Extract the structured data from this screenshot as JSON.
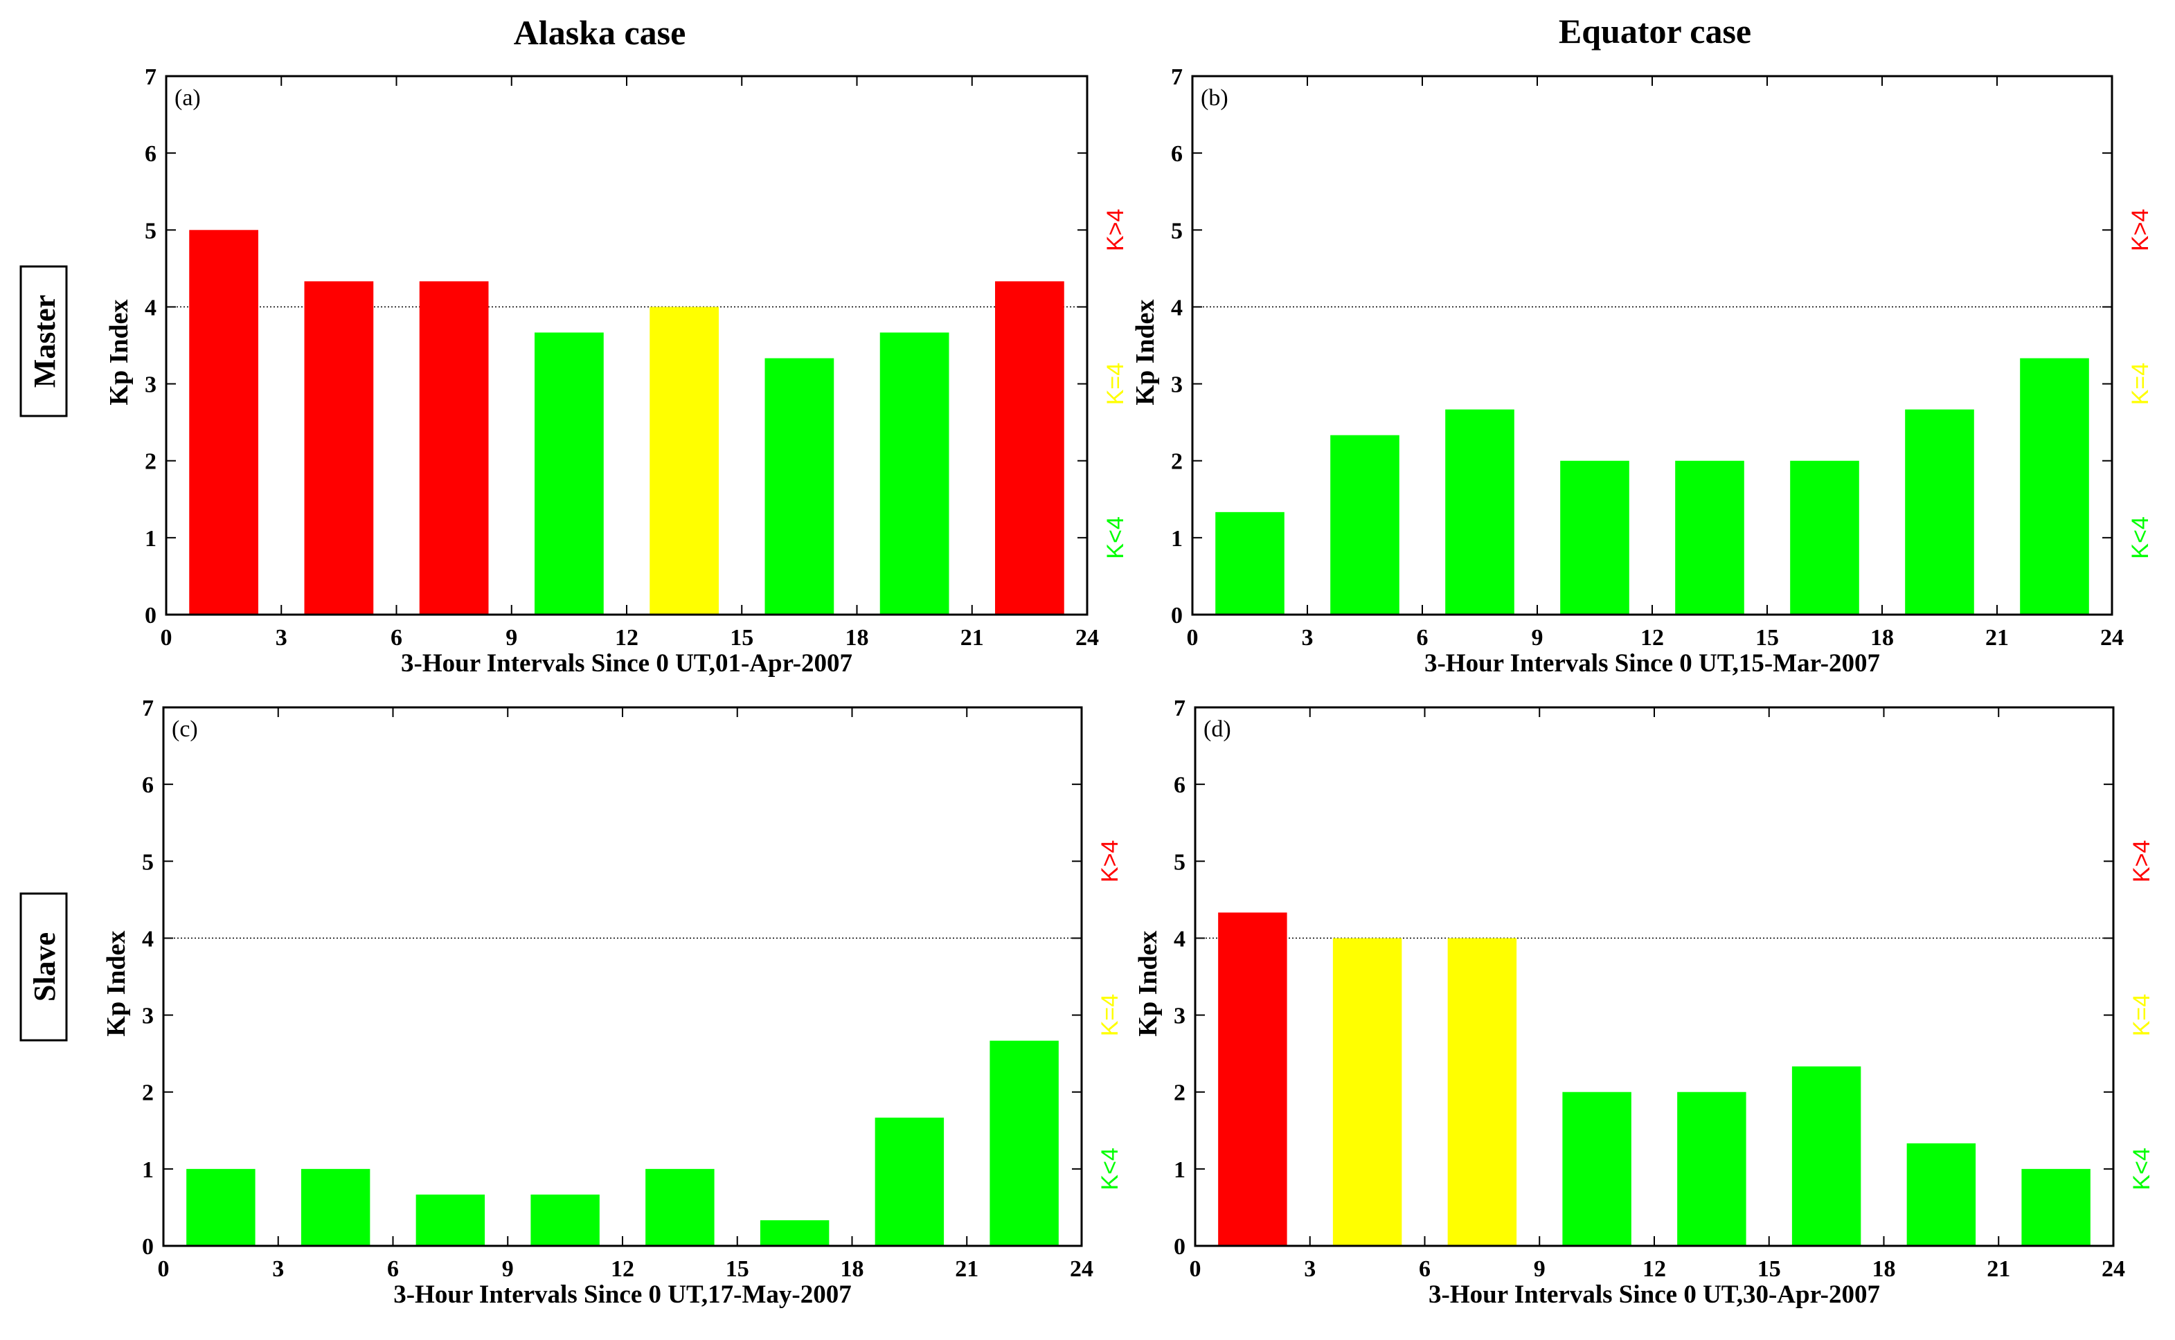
{
  "column_titles": [
    "Alaska case",
    "Equator case"
  ],
  "row_labels": [
    "Master",
    "Slave"
  ],
  "legend": [
    {
      "label": "K>4",
      "color": "#ff0000"
    },
    {
      "label": "K=4",
      "color": "#ffff00"
    },
    {
      "label": "K<4",
      "color": "#00ff00"
    }
  ],
  "colors": {
    "high": "#ff0000",
    "equal": "#ffff00",
    "low": "#00ff00"
  },
  "threshold": 4,
  "chart_data": [
    {
      "type": "bar",
      "panel": "(a)",
      "title": "Alaska case",
      "row": "Master",
      "xlabel": "3-Hour Intervals Since 0 UT,01-Apr-2007",
      "ylabel": "Kp Index",
      "x": [
        1.5,
        4.5,
        7.5,
        10.5,
        13.5,
        16.5,
        19.5,
        22.5
      ],
      "values": [
        5.0,
        4.333,
        4.333,
        3.667,
        4.0,
        3.333,
        3.667,
        4.333
      ],
      "xlim": [
        0,
        24
      ],
      "ylim": [
        0,
        7
      ],
      "xticks": [
        "0",
        "3",
        "6",
        "9",
        "12",
        "15",
        "18",
        "21",
        "24"
      ],
      "yticks": [
        "0",
        "1",
        "2",
        "3",
        "4",
        "5",
        "6",
        "7"
      ]
    },
    {
      "type": "bar",
      "panel": "(b)",
      "title": "Equator case",
      "row": "Master",
      "xlabel": "3-Hour Intervals Since 0 UT,15-Mar-2007",
      "ylabel": "Kp Index",
      "x": [
        1.5,
        4.5,
        7.5,
        10.5,
        13.5,
        16.5,
        19.5,
        22.5
      ],
      "values": [
        1.333,
        2.333,
        2.667,
        2.0,
        2.0,
        2.0,
        2.667,
        3.333
      ],
      "xlim": [
        0,
        24
      ],
      "ylim": [
        0,
        7
      ],
      "xticks": [
        "0",
        "3",
        "6",
        "9",
        "12",
        "15",
        "18",
        "21",
        "24"
      ],
      "yticks": [
        "0",
        "1",
        "2",
        "3",
        "4",
        "5",
        "6",
        "7"
      ]
    },
    {
      "type": "bar",
      "panel": "(c)",
      "title": "Alaska case",
      "row": "Slave",
      "xlabel": "3-Hour Intervals Since 0 UT,17-May-2007",
      "ylabel": "Kp Index",
      "x": [
        1.5,
        4.5,
        7.5,
        10.5,
        13.5,
        16.5,
        19.5,
        22.5
      ],
      "values": [
        1.0,
        1.0,
        0.667,
        0.667,
        1.0,
        0.333,
        1.667,
        2.667
      ],
      "xlim": [
        0,
        24
      ],
      "ylim": [
        0,
        7
      ],
      "xticks": [
        "0",
        "3",
        "6",
        "9",
        "12",
        "15",
        "18",
        "21",
        "24"
      ],
      "yticks": [
        "0",
        "1",
        "2",
        "3",
        "4",
        "5",
        "6",
        "7"
      ]
    },
    {
      "type": "bar",
      "panel": "(d)",
      "title": "Equator case",
      "row": "Slave",
      "xlabel": "3-Hour Intervals Since 0 UT,30-Apr-2007",
      "ylabel": "Kp Index",
      "x": [
        1.5,
        4.5,
        7.5,
        10.5,
        13.5,
        16.5,
        19.5,
        22.5
      ],
      "values": [
        4.333,
        4.0,
        4.0,
        2.0,
        2.0,
        2.333,
        1.333,
        1.0
      ],
      "xlim": [
        0,
        24
      ],
      "ylim": [
        0,
        7
      ],
      "xticks": [
        "0",
        "3",
        "6",
        "9",
        "12",
        "15",
        "18",
        "21",
        "24"
      ],
      "yticks": [
        "0",
        "1",
        "2",
        "3",
        "4",
        "5",
        "6",
        "7"
      ]
    }
  ]
}
